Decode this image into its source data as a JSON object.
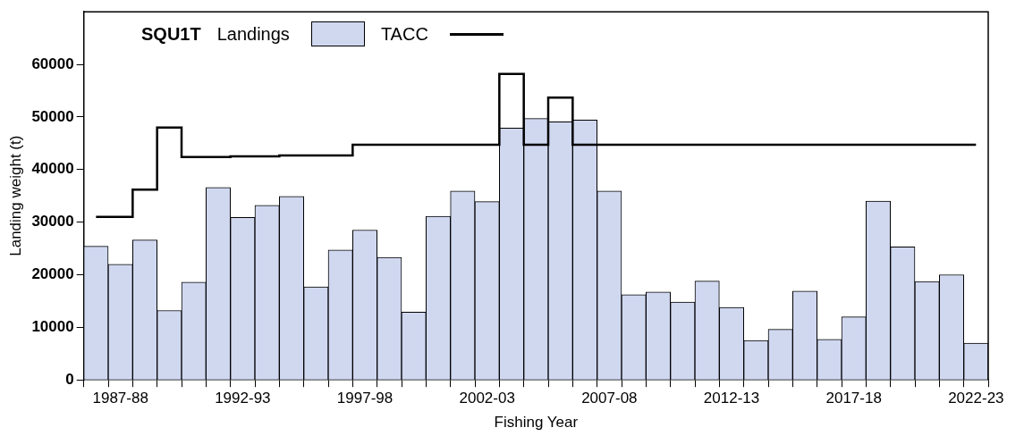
{
  "chart_data": {
    "type": "bar",
    "title": "SQU1T",
    "xlabel": "Fishing Year",
    "ylabel": "Landing weight (t)",
    "categories": [
      null,
      "1987-88",
      null,
      null,
      null,
      null,
      "1992-93",
      null,
      null,
      null,
      null,
      "1997-98",
      null,
      null,
      null,
      null,
      "2002-03",
      null,
      null,
      null,
      null,
      "2007-08",
      null,
      null,
      null,
      null,
      "2012-13",
      null,
      null,
      null,
      null,
      "2017-18",
      null,
      null,
      null,
      null,
      "2022-23"
    ],
    "series": [
      {
        "name": "Landings",
        "color": "#d0d8f0",
        "values": [
          25400,
          22000,
          26600,
          13200,
          18600,
          36600,
          30900,
          33200,
          34900,
          17700,
          24700,
          28500,
          23300,
          12900,
          31100,
          35900,
          33900,
          47900,
          49700,
          49100,
          49400,
          35900,
          16200,
          16700,
          14800,
          18800,
          13800,
          7500,
          9600,
          16900,
          7700,
          12000,
          34000,
          25300,
          18700,
          20000,
          7000
        ]
      },
      {
        "name": "TACC",
        "type": "step",
        "color": "#000000",
        "values": [
          31000,
          31000,
          36200,
          48000,
          42400,
          42400,
          42500,
          42500,
          42700,
          42700,
          42700,
          44700,
          44700,
          44700,
          44700,
          44700,
          44700,
          58200,
          44700,
          53700,
          44700,
          44700,
          44700,
          44700,
          44700,
          44700,
          44700,
          44700,
          44700,
          44700,
          44700,
          44700,
          44700,
          44700,
          44700,
          44700,
          44700
        ]
      }
    ],
    "ylim": [
      0,
      70000
    ],
    "yticks": [
      0,
      10000,
      20000,
      30000,
      40000,
      50000,
      60000
    ],
    "legend": "top left",
    "grid": false
  }
}
